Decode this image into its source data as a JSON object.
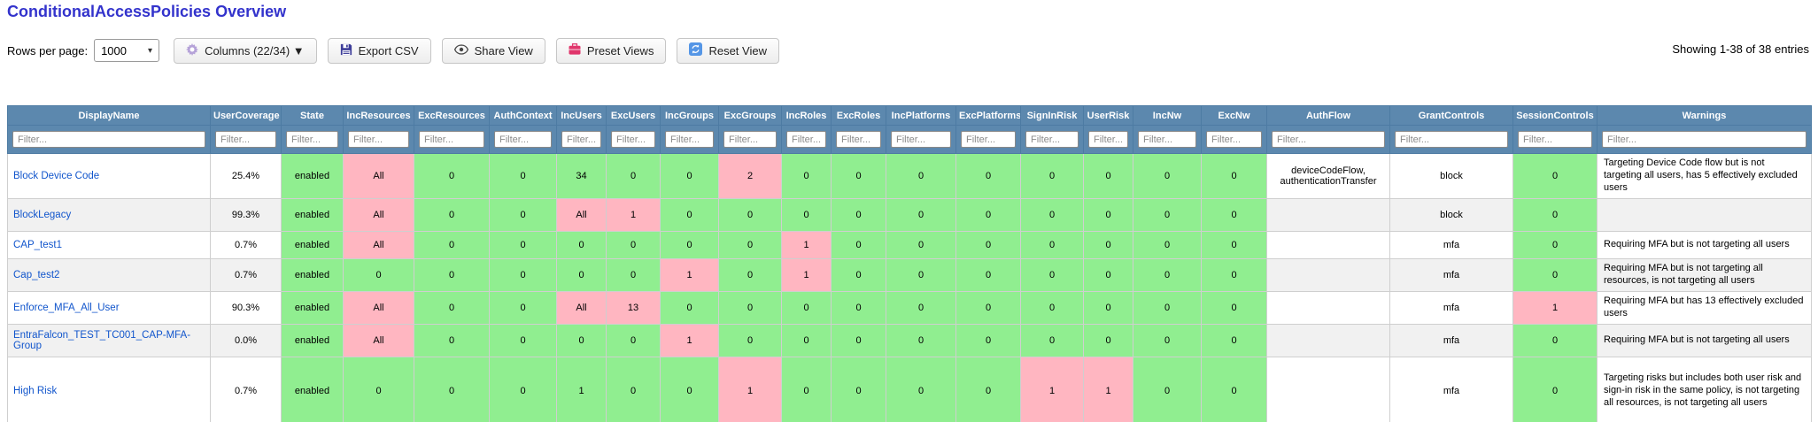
{
  "header": {
    "title": "ConditionalAccessPolicies Overview"
  },
  "toolbar": {
    "rows_per_page_label": "Rows per page:",
    "rows_per_page_value": "1000",
    "columns_button": "Columns (22/34) ▼",
    "export_button": "Export CSV",
    "share_button": "Share View",
    "preset_button": "Preset Views",
    "reset_button": "Reset View",
    "showing_text": "Showing 1-38 of 38 entries"
  },
  "colors": {
    "header_bg": "#5c88ae",
    "green": "#90EE90",
    "pink": "#FFB6C1",
    "title_blue": "#3333cc",
    "link_blue": "#1155cc"
  },
  "table": {
    "filter_placeholder": "Filter...",
    "columns": [
      "DisplayName",
      "UserCoverage",
      "State",
      "IncResources",
      "ExcResources",
      "AuthContext",
      "IncUsers",
      "ExcUsers",
      "IncGroups",
      "ExcGroups",
      "IncRoles",
      "ExcRoles",
      "IncPlatforms",
      "ExcPlatforms",
      "SignInRisk",
      "UserRisk",
      "IncNw",
      "ExcNw",
      "AuthFlow",
      "GrantControls",
      "SessionControls",
      "Warnings"
    ],
    "rows": [
      {
        "name": "Block Device Code",
        "values": [
          "25.4%",
          "enabled",
          "All",
          "0",
          "0",
          "34",
          "0",
          "0",
          "2",
          "0",
          "0",
          "0",
          "0",
          "0",
          "0",
          "0",
          "0",
          "deviceCodeFlow, authenticationTransfer",
          "block",
          "0",
          "Targeting Device Code flow but is not targeting all users, has 5 effectively excluded users"
        ],
        "colors": [
          "n",
          "g",
          "p",
          "g",
          "g",
          "g",
          "g",
          "g",
          "p",
          "g",
          "g",
          "g",
          "g",
          "g",
          "g",
          "g",
          "g",
          "n",
          "n",
          "g",
          "n"
        ]
      },
      {
        "name": "BlockLegacy",
        "values": [
          "99.3%",
          "enabled",
          "All",
          "0",
          "0",
          "All",
          "1",
          "0",
          "0",
          "0",
          "0",
          "0",
          "0",
          "0",
          "0",
          "0",
          "0",
          "",
          "block",
          "0",
          ""
        ],
        "colors": [
          "n",
          "g",
          "p",
          "g",
          "g",
          "p",
          "p",
          "g",
          "g",
          "g",
          "g",
          "g",
          "g",
          "g",
          "g",
          "g",
          "g",
          "n",
          "n",
          "g",
          "n"
        ]
      },
      {
        "name": "CAP_test1",
        "values": [
          "0.7%",
          "enabled",
          "All",
          "0",
          "0",
          "0",
          "0",
          "0",
          "0",
          "1",
          "0",
          "0",
          "0",
          "0",
          "0",
          "0",
          "0",
          "",
          "mfa",
          "0",
          "Requiring MFA but is not targeting all users"
        ],
        "colors": [
          "n",
          "g",
          "p",
          "g",
          "g",
          "g",
          "g",
          "g",
          "g",
          "p",
          "g",
          "g",
          "g",
          "g",
          "g",
          "g",
          "g",
          "n",
          "n",
          "g",
          "n"
        ]
      },
      {
        "name": "Cap_test2",
        "values": [
          "0.7%",
          "enabled",
          "0",
          "0",
          "0",
          "0",
          "0",
          "1",
          "0",
          "1",
          "0",
          "0",
          "0",
          "0",
          "0",
          "0",
          "0",
          "",
          "mfa",
          "0",
          "Requiring MFA but is not targeting all resources, is not targeting all users"
        ],
        "colors": [
          "n",
          "g",
          "g",
          "g",
          "g",
          "g",
          "g",
          "p",
          "g",
          "p",
          "g",
          "g",
          "g",
          "g",
          "g",
          "g",
          "g",
          "n",
          "n",
          "g",
          "n"
        ]
      },
      {
        "name": "Enforce_MFA_All_User",
        "values": [
          "90.3%",
          "enabled",
          "All",
          "0",
          "0",
          "All",
          "13",
          "0",
          "0",
          "0",
          "0",
          "0",
          "0",
          "0",
          "0",
          "0",
          "0",
          "",
          "mfa",
          "1",
          "Requiring MFA but has 13 effectively excluded users"
        ],
        "colors": [
          "n",
          "g",
          "p",
          "g",
          "g",
          "p",
          "p",
          "g",
          "g",
          "g",
          "g",
          "g",
          "g",
          "g",
          "g",
          "g",
          "g",
          "n",
          "n",
          "p",
          "n"
        ]
      },
      {
        "name": "EntraFalcon_TEST_TC001_CAP-MFA-Group",
        "values": [
          "0.0%",
          "enabled",
          "All",
          "0",
          "0",
          "0",
          "0",
          "1",
          "0",
          "0",
          "0",
          "0",
          "0",
          "0",
          "0",
          "0",
          "0",
          "",
          "mfa",
          "0",
          "Requiring MFA but is not targeting all users"
        ],
        "colors": [
          "n",
          "g",
          "p",
          "g",
          "g",
          "g",
          "g",
          "p",
          "g",
          "g",
          "g",
          "g",
          "g",
          "g",
          "g",
          "g",
          "g",
          "n",
          "n",
          "g",
          "n"
        ]
      },
      {
        "name": "High Risk",
        "values": [
          "0.7%",
          "enabled",
          "0",
          "0",
          "0",
          "1",
          "0",
          "0",
          "1",
          "0",
          "0",
          "0",
          "0",
          "1",
          "1",
          "0",
          "0",
          "",
          "mfa",
          "0",
          "Targeting risks but includes both user risk and sign-in risk in the same policy, is not targeting all resources, is not targeting all users"
        ],
        "colors": [
          "n",
          "g",
          "g",
          "g",
          "g",
          "g",
          "g",
          "g",
          "p",
          "g",
          "g",
          "g",
          "g",
          "p",
          "p",
          "g",
          "g",
          "n",
          "n",
          "g",
          "n"
        ]
      },
      {
        "name": "",
        "partial": true,
        "values": [
          "",
          "",
          "",
          "",
          "",
          "",
          "",
          "",
          "",
          "",
          "",
          "",
          "",
          "",
          "",
          "",
          "",
          "",
          "",
          "",
          ""
        ],
        "colors": [
          "n",
          "g",
          "g",
          "g",
          "p",
          "p",
          "g",
          "g",
          "g",
          "g",
          "g",
          "g",
          "g",
          "g",
          "g",
          "g",
          "g",
          "n",
          "n",
          "p",
          "n"
        ]
      }
    ]
  }
}
